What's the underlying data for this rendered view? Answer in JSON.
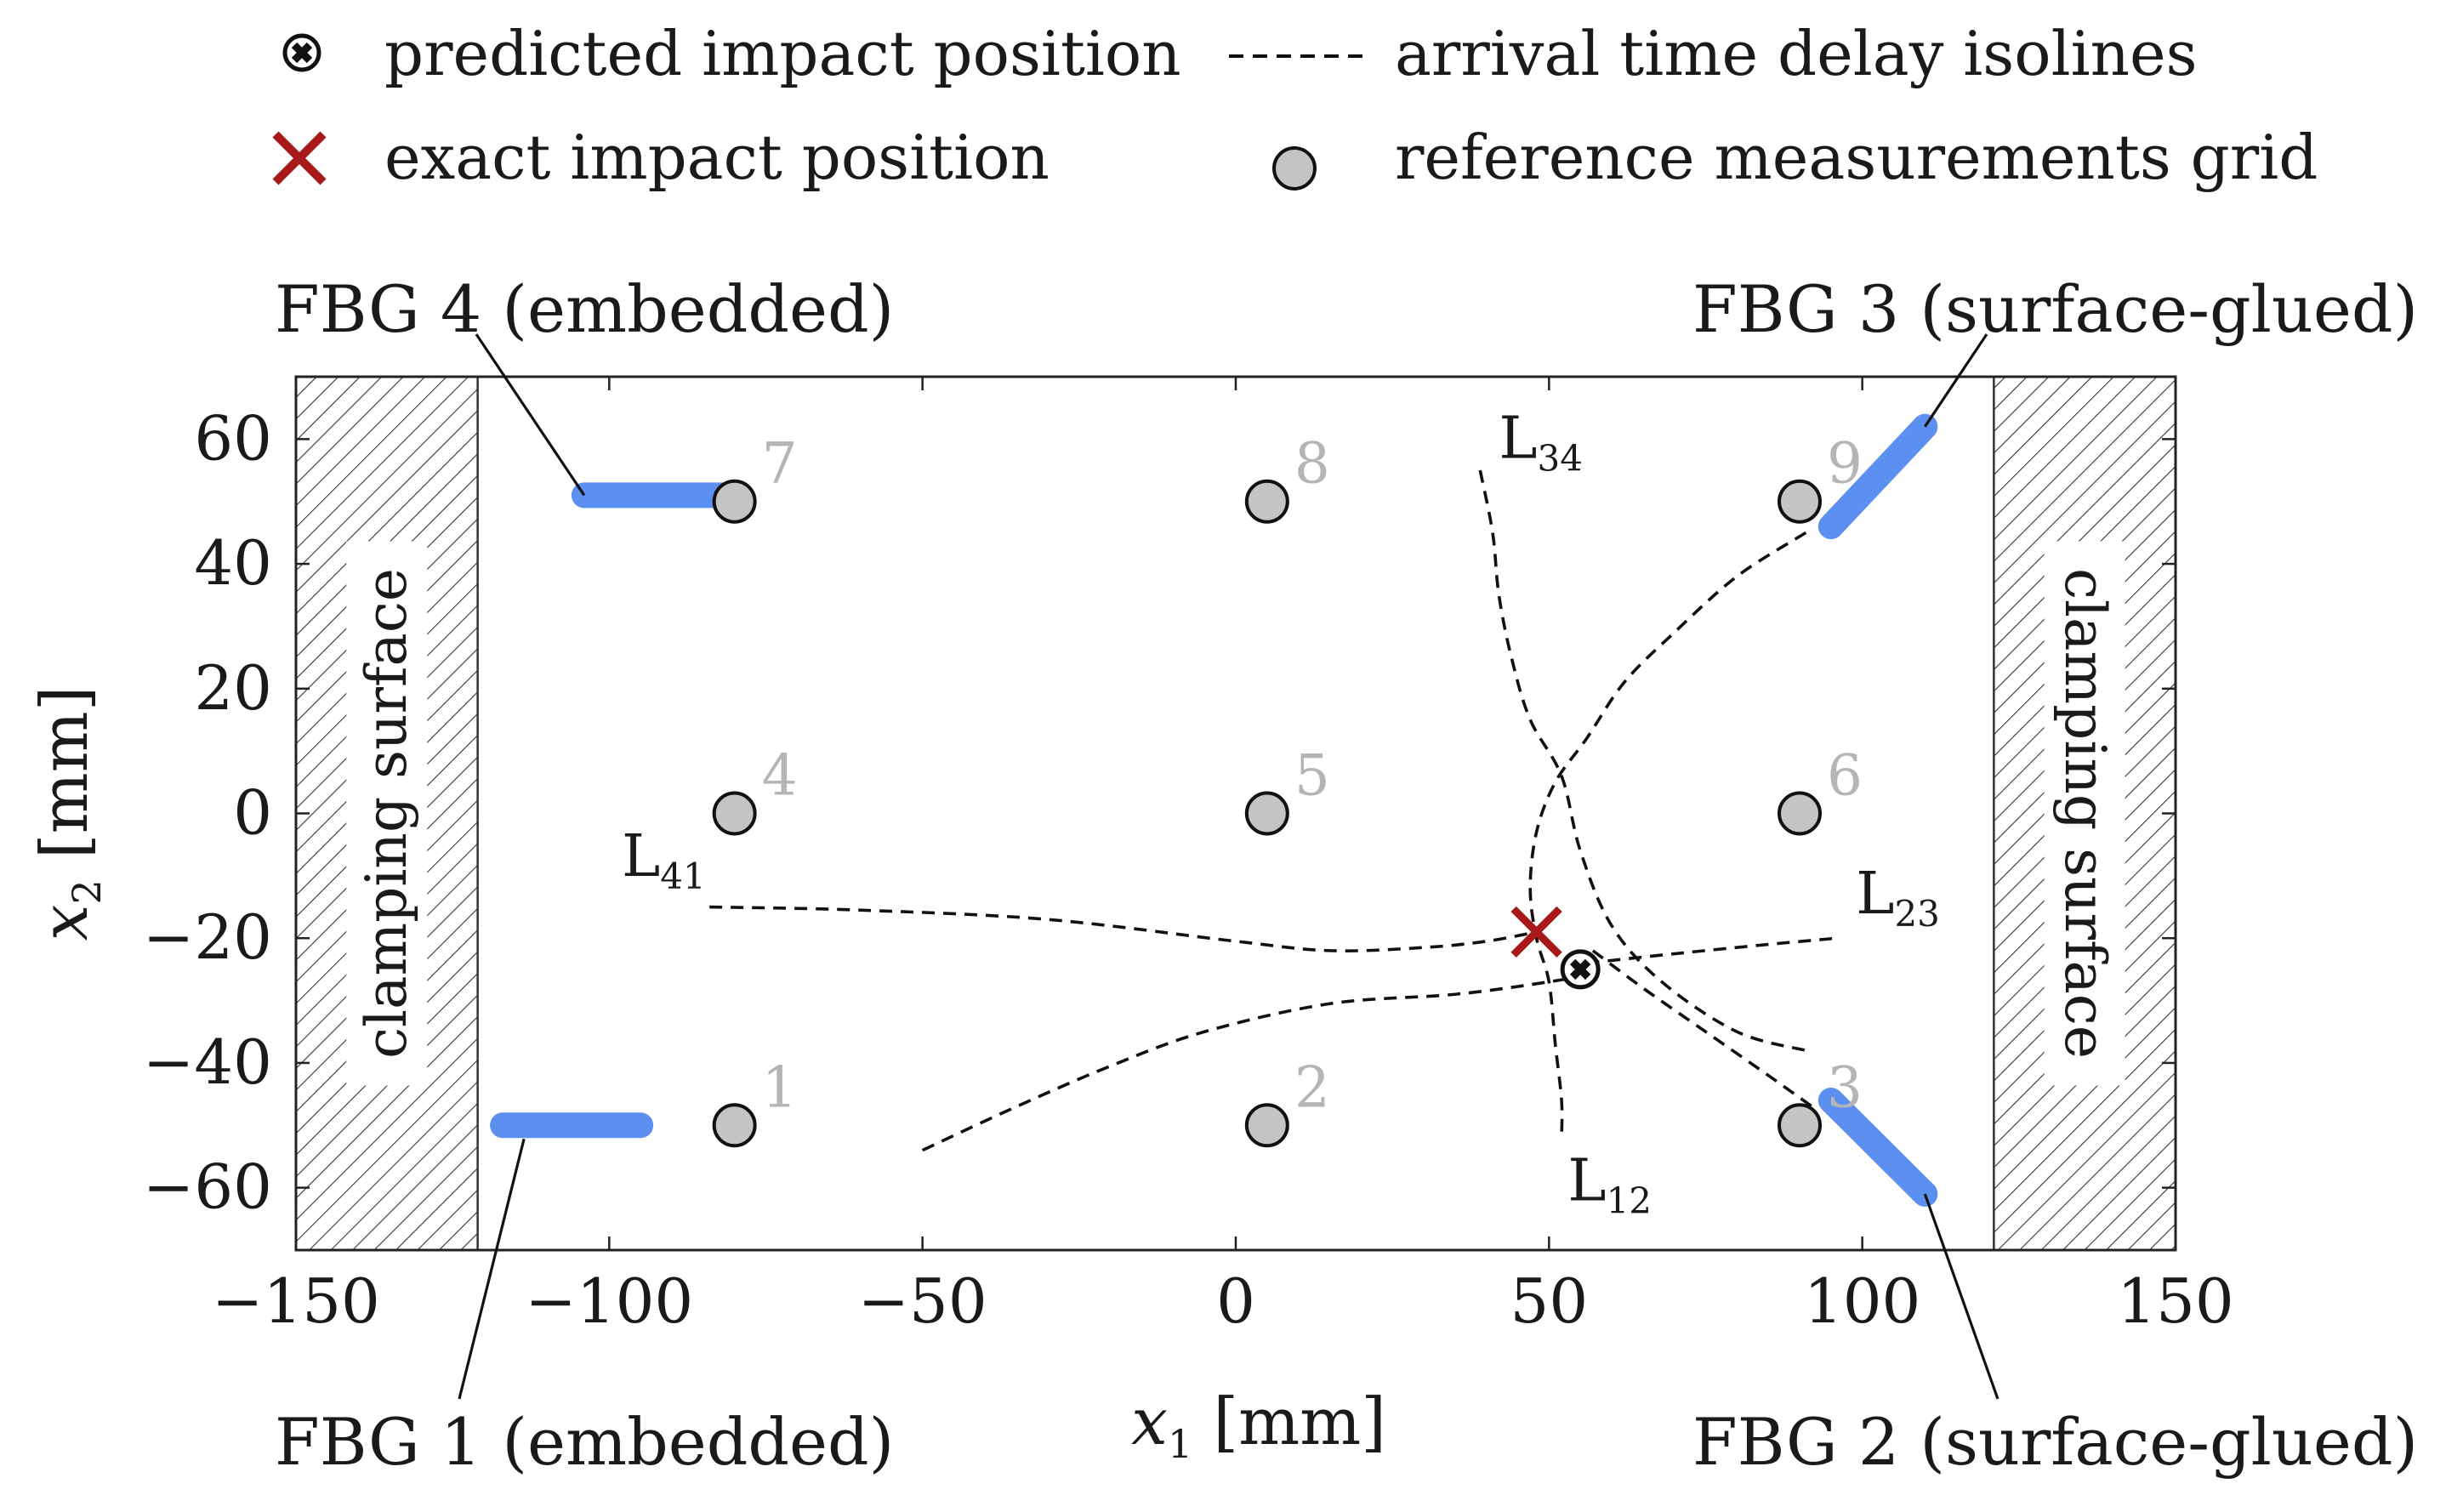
{
  "chart_data": {
    "type": "scatter",
    "xlabel": "x",
    "xlabel_sub": "1",
    "xlabel_unit": "[mm]",
    "ylabel": "x",
    "ylabel_sub": "2",
    "ylabel_unit": "[mm]",
    "xlim": [
      -150,
      150
    ],
    "ylim": [
      -70,
      70
    ],
    "xticks": [
      -150,
      -100,
      -50,
      0,
      50,
      100,
      150
    ],
    "yticks": [
      -60,
      -40,
      -20,
      0,
      20,
      40,
      60
    ],
    "xtick_labels": [
      "−150",
      "−100",
      "−50",
      "0",
      "50",
      "100",
      "150"
    ],
    "ytick_labels": [
      "−60",
      "−40",
      "−20",
      "0",
      "20",
      "40",
      "60"
    ],
    "grid": false,
    "legend": {
      "placement": "top",
      "items": [
        {
          "marker": "circle-cross",
          "label": "predicted impact position"
        },
        {
          "marker": "dashed-line",
          "label": "arrival time delay isolines"
        },
        {
          "marker": "x",
          "label": "exact impact position",
          "color": "#a81a1a"
        },
        {
          "marker": "gray-circle",
          "label": "reference measurements grid"
        }
      ]
    },
    "reference_grid": [
      {
        "label": "1",
        "x": -80,
        "y": -50
      },
      {
        "label": "2",
        "x": 5,
        "y": -50
      },
      {
        "label": "3",
        "x": 90,
        "y": -50
      },
      {
        "label": "4",
        "x": -80,
        "y": 0
      },
      {
        "label": "5",
        "x": 5,
        "y": 0
      },
      {
        "label": "6",
        "x": 90,
        "y": 0
      },
      {
        "label": "7",
        "x": -80,
        "y": 50
      },
      {
        "label": "8",
        "x": 5,
        "y": 50
      },
      {
        "label": "9",
        "x": 90,
        "y": 50
      }
    ],
    "exact_impact": {
      "x": 48,
      "y": -19,
      "color": "#a81a1a"
    },
    "predicted_impact": {
      "x": 55,
      "y": -25
    },
    "isolines": [
      {
        "name": "L",
        "sub": "41",
        "points": [
          [
            -84,
            -15
          ],
          [
            -60,
            -15.5
          ],
          [
            -30,
            -17
          ],
          [
            0,
            -20.5
          ],
          [
            15,
            -22
          ],
          [
            30,
            -21.5
          ],
          [
            40,
            -20.5
          ],
          [
            48,
            -19
          ]
        ]
      },
      {
        "name": "L",
        "sub": "41",
        "points": [
          [
            -50,
            -54
          ],
          [
            -35,
            -47
          ],
          [
            -20,
            -40.5
          ],
          [
            -5,
            -35
          ],
          [
            15,
            -30.5
          ],
          [
            35,
            -29
          ],
          [
            50,
            -27
          ],
          [
            58,
            -25.5
          ]
        ]
      },
      {
        "name": "L",
        "sub": "34",
        "points": [
          [
            39,
            55
          ],
          [
            41,
            45
          ],
          [
            42,
            35
          ],
          [
            44,
            25
          ],
          [
            47,
            15
          ],
          [
            52,
            6
          ],
          [
            55,
            -6
          ],
          [
            60,
            -18
          ],
          [
            68,
            -27
          ],
          [
            80,
            -35
          ],
          [
            91,
            -38
          ]
        ]
      },
      {
        "name": "L",
        "sub": "23",
        "points": [
          [
            91,
            45
          ],
          [
            80,
            38
          ],
          [
            70,
            29
          ],
          [
            62,
            21
          ],
          [
            56,
            12
          ],
          [
            51,
            5
          ],
          [
            48,
            -3
          ],
          [
            47,
            -12
          ],
          [
            48,
            -20
          ],
          [
            50,
            -27
          ],
          [
            51,
            -37
          ],
          [
            52,
            -46
          ],
          [
            52,
            -52
          ]
        ]
      },
      {
        "name": "L",
        "sub": "12",
        "points": [
          [
            56,
            -24
          ],
          [
            70,
            -22.5
          ],
          [
            85,
            -21
          ],
          [
            96,
            -20
          ]
        ]
      },
      {
        "name": "L",
        "sub": "12",
        "points": [
          [
            57,
            -22
          ],
          [
            65,
            -28
          ],
          [
            75,
            -35
          ],
          [
            85,
            -42
          ],
          [
            92,
            -47
          ]
        ]
      }
    ],
    "isoline_labels": [
      {
        "name": "L",
        "sub": "34",
        "x": 42,
        "y": 57
      },
      {
        "name": "L",
        "sub": "41",
        "x": -98,
        "y": -10
      },
      {
        "name": "L",
        "sub": "23",
        "x": 99,
        "y": -16
      },
      {
        "name": "L",
        "sub": "12",
        "x": 53,
        "y": -62
      }
    ],
    "sensors": [
      {
        "label": "FBG 1 (embedded)",
        "x1": -117,
        "y1": -50,
        "x2": -95,
        "y2": -50,
        "color": "#5b8ff0",
        "callout_at": "bottom-left"
      },
      {
        "label": "FBG 2 (surface-glued)",
        "x1": 95,
        "y1": -46,
        "x2": 110,
        "y2": -61,
        "color": "#5b8ff0",
        "callout_at": "bottom-right"
      },
      {
        "label": "FBG 3 (surface-glued)",
        "x1": 95,
        "y1": 46,
        "x2": 110,
        "y2": 62,
        "color": "#5b8ff0",
        "callout_at": "top-right"
      },
      {
        "label": "FBG 4 (embedded)",
        "x1": -104,
        "y1": 51,
        "x2": -82,
        "y2": 51,
        "color": "#5b8ff0",
        "callout_at": "top-left"
      }
    ],
    "clamping_regions": [
      {
        "label": "clamping surface",
        "from": -150,
        "to": -121
      },
      {
        "label": "clamping surface",
        "from": 121,
        "to": 150
      }
    ]
  }
}
